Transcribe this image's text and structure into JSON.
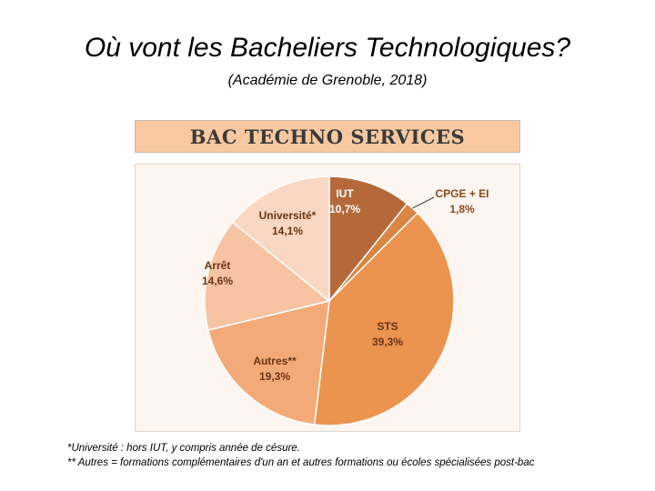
{
  "title": "Où vont les Bacheliers Technologiques?",
  "subtitle": "(Académie de Grenoble, 2018)",
  "chart_data": {
    "type": "pie",
    "title": "BAC TECHNO SERVICES",
    "slices": [
      {
        "label": "IUT",
        "value": 10.7,
        "display": "10,7%",
        "color": "#b5693a",
        "label_color": "#ffffff"
      },
      {
        "label": "CPGE + EI",
        "value": 1.8,
        "display": "1,8%",
        "color": "#d98642",
        "label_color": "#8a4a20"
      },
      {
        "label": "STS",
        "value": 39.3,
        "display": "39,3%",
        "color": "#eb9450",
        "label_color": "#6a3413"
      },
      {
        "label": "Autres**",
        "value": 19.3,
        "display": "19,3%",
        "color": "#f4aa78",
        "label_color": "#6a3413"
      },
      {
        "label": "Arrêt",
        "value": 14.6,
        "display": "14,6%",
        "color": "#f7c3a2",
        "label_color": "#6a3413"
      },
      {
        "label": "Université*",
        "value": 14.1,
        "display": "14,1%",
        "color": "#fad7c2",
        "label_color": "#6a3413"
      }
    ]
  },
  "footnotes": [
    "*Université : hors IUT, y compris année de césure.",
    "** Autres = formations complémentaires d'un an et autres formations ou écoles spécialisées post-bac"
  ]
}
